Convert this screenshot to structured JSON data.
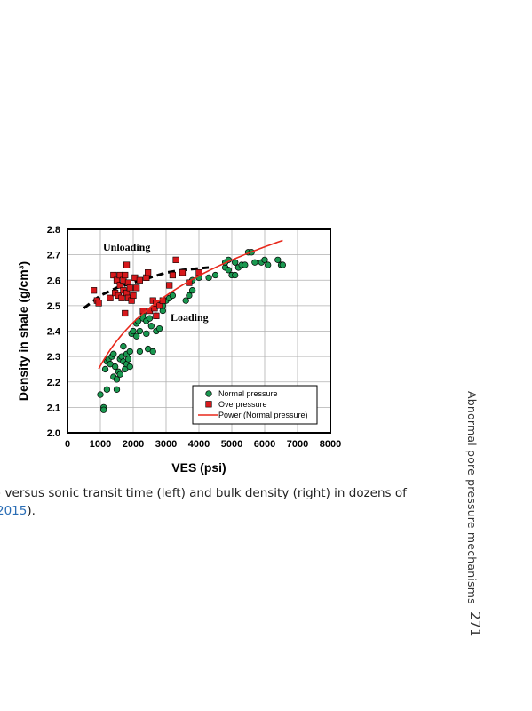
{
  "chart_data": {
    "type": "scatter",
    "xlabel": "VES (psi)",
    "ylabel": "Density in shale (g/cm³)",
    "xlim": [
      0,
      8000
    ],
    "ylim": [
      2.0,
      2.8
    ],
    "x_ticks": [
      "0",
      "1000",
      "2000",
      "3000",
      "4000",
      "5000",
      "6000",
      "7000",
      "8000"
    ],
    "y_ticks": [
      "2.0",
      "2.1",
      "2.2",
      "2.3",
      "2.4",
      "2.5",
      "2.6",
      "2.7",
      "2.8"
    ],
    "grid": true,
    "legend_position": "bottom-right",
    "annotations": [
      "Unloading",
      "Loading"
    ],
    "series": [
      {
        "name": "Normal pressure",
        "color": "#1a9850",
        "marker": "circle",
        "points": [
          [
            1000,
            2.15
          ],
          [
            1100,
            2.1
          ],
          [
            1100,
            2.09
          ],
          [
            1200,
            2.17
          ],
          [
            1150,
            2.25
          ],
          [
            1200,
            2.28
          ],
          [
            1250,
            2.29
          ],
          [
            1300,
            2.27
          ],
          [
            1350,
            2.3
          ],
          [
            1400,
            2.31
          ],
          [
            1400,
            2.22
          ],
          [
            1450,
            2.26
          ],
          [
            1500,
            2.21
          ],
          [
            1500,
            2.17
          ],
          [
            1550,
            2.24
          ],
          [
            1600,
            2.29
          ],
          [
            1600,
            2.23
          ],
          [
            1650,
            2.3
          ],
          [
            1700,
            2.28
          ],
          [
            1700,
            2.34
          ],
          [
            1750,
            2.25
          ],
          [
            1800,
            2.27
          ],
          [
            1800,
            2.31
          ],
          [
            1850,
            2.29
          ],
          [
            1900,
            2.26
          ],
          [
            1900,
            2.32
          ],
          [
            1950,
            2.39
          ],
          [
            2000,
            2.4
          ],
          [
            2100,
            2.38
          ],
          [
            2100,
            2.43
          ],
          [
            2150,
            2.44
          ],
          [
            2200,
            2.32
          ],
          [
            2200,
            2.4
          ],
          [
            2300,
            2.45
          ],
          [
            2300,
            2.47
          ],
          [
            2400,
            2.39
          ],
          [
            2400,
            2.44
          ],
          [
            2450,
            2.33
          ],
          [
            2500,
            2.45
          ],
          [
            2550,
            2.42
          ],
          [
            2600,
            2.32
          ],
          [
            2700,
            2.4
          ],
          [
            2700,
            2.46
          ],
          [
            2800,
            2.41
          ],
          [
            2900,
            2.48
          ],
          [
            2900,
            2.5
          ],
          [
            3000,
            2.52
          ],
          [
            3100,
            2.53
          ],
          [
            3200,
            2.54
          ],
          [
            3600,
            2.52
          ],
          [
            3700,
            2.54
          ],
          [
            3800,
            2.56
          ],
          [
            3800,
            2.6
          ],
          [
            4000,
            2.61
          ],
          [
            4300,
            2.61
          ],
          [
            4500,
            2.62
          ],
          [
            4800,
            2.65
          ],
          [
            4800,
            2.67
          ],
          [
            4900,
            2.68
          ],
          [
            4900,
            2.64
          ],
          [
            5000,
            2.62
          ],
          [
            5100,
            2.62
          ],
          [
            5100,
            2.67
          ],
          [
            5200,
            2.65
          ],
          [
            5300,
            2.66
          ],
          [
            5400,
            2.66
          ],
          [
            5500,
            2.71
          ],
          [
            5600,
            2.71
          ],
          [
            5700,
            2.67
          ],
          [
            5900,
            2.67
          ],
          [
            6000,
            2.68
          ],
          [
            6100,
            2.66
          ],
          [
            6400,
            2.68
          ],
          [
            6500,
            2.66
          ],
          [
            6550,
            2.66
          ]
        ]
      },
      {
        "name": "Overpressure",
        "color": "#d7191c",
        "marker": "square",
        "points": [
          [
            800,
            2.56
          ],
          [
            900,
            2.52
          ],
          [
            950,
            2.51
          ],
          [
            1300,
            2.53
          ],
          [
            1400,
            2.62
          ],
          [
            1450,
            2.55
          ],
          [
            1500,
            2.6
          ],
          [
            1550,
            2.54
          ],
          [
            1600,
            2.58
          ],
          [
            1600,
            2.62
          ],
          [
            1650,
            2.53
          ],
          [
            1700,
            2.6
          ],
          [
            1700,
            2.56
          ],
          [
            1750,
            2.62
          ],
          [
            1750,
            2.47
          ],
          [
            1800,
            2.66
          ],
          [
            1800,
            2.55
          ],
          [
            1850,
            2.53
          ],
          [
            1850,
            2.59
          ],
          [
            1900,
            2.57
          ],
          [
            1950,
            2.52
          ],
          [
            2000,
            2.54
          ],
          [
            2050,
            2.61
          ],
          [
            2100,
            2.57
          ],
          [
            2200,
            2.6
          ],
          [
            2300,
            2.48
          ],
          [
            2400,
            2.61
          ],
          [
            2450,
            2.63
          ],
          [
            2500,
            2.48
          ],
          [
            2600,
            2.52
          ],
          [
            2650,
            2.49
          ],
          [
            2700,
            2.46
          ],
          [
            2700,
            2.51
          ],
          [
            2800,
            2.5
          ],
          [
            2900,
            2.52
          ],
          [
            3100,
            2.58
          ],
          [
            3200,
            2.62
          ],
          [
            3300,
            2.68
          ],
          [
            3500,
            2.63
          ],
          [
            3700,
            2.59
          ],
          [
            4000,
            2.63
          ]
        ]
      },
      {
        "name": "Power (Normal pressure)",
        "color": "#e8291c",
        "type": "line",
        "equation": "y = 1.0965 * x^0.1049",
        "x_range": [
          950,
          6550
        ]
      },
      {
        "name": "Unloading trend",
        "color": "#000000",
        "type": "dashed-line",
        "points": [
          [
            500,
            2.49
          ],
          [
            1000,
            2.54
          ],
          [
            1500,
            2.57
          ],
          [
            2000,
            2.59
          ],
          [
            2500,
            2.61
          ],
          [
            3000,
            2.63
          ],
          [
            3500,
            2.64
          ],
          [
            4300,
            2.65
          ]
        ]
      }
    ]
  },
  "caption": {
    "line1": ") versus sonic transit time (left) and bulk density (right) in dozens of",
    "line2_link": "2015",
    "line2_rest": ")."
  },
  "side": {
    "running_head": "Abnormal pore pressure mechanisms",
    "page_number": "271"
  }
}
